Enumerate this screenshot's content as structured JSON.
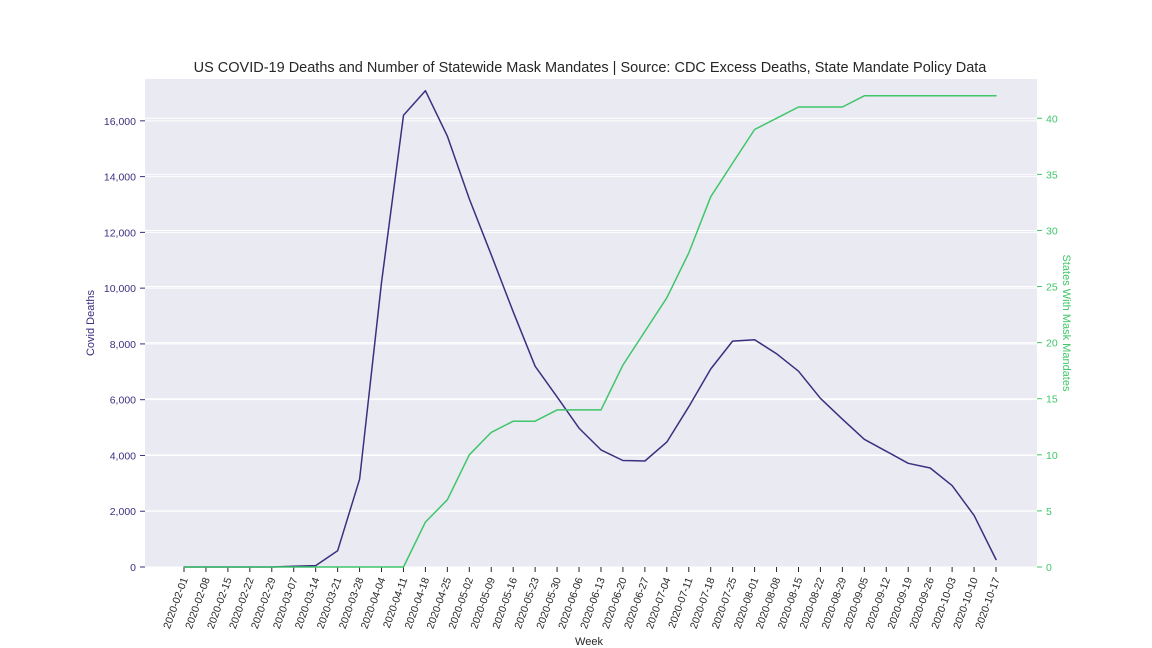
{
  "chart_data": {
    "type": "line",
    "title": "US COVID-19 Deaths and Number of Statewide Mask Mandates | Source: CDC Excess Deaths, State Mandate Policy Data",
    "xlabel": "Week",
    "ylabel_left": "Covid Deaths",
    "ylabel_right": "States With Mask Mandates",
    "x": [
      "2020-02-01",
      "2020-02-08",
      "2020-02-15",
      "2020-02-22",
      "2020-02-29",
      "2020-03-07",
      "2020-03-14",
      "2020-03-21",
      "2020-03-28",
      "2020-04-04",
      "2020-04-11",
      "2020-04-18",
      "2020-04-25",
      "2020-05-02",
      "2020-05-09",
      "2020-05-16",
      "2020-05-23",
      "2020-05-30",
      "2020-06-06",
      "2020-06-13",
      "2020-06-20",
      "2020-06-27",
      "2020-07-04",
      "2020-07-11",
      "2020-07-18",
      "2020-07-25",
      "2020-08-01",
      "2020-08-08",
      "2020-08-15",
      "2020-08-22",
      "2020-08-29",
      "2020-09-05",
      "2020-09-12",
      "2020-09-19",
      "2020-09-26",
      "2020-10-03",
      "2020-10-10",
      "2020-10-17"
    ],
    "ylim_left": [
      0,
      17500
    ],
    "yticks_left": [
      0,
      2000,
      4000,
      6000,
      8000,
      10000,
      12000,
      14000,
      16000
    ],
    "ytick_labels_left": [
      "0",
      "2,000",
      "4,000",
      "6,000",
      "8,000",
      "10,000",
      "12,000",
      "14,000",
      "16,000"
    ],
    "ylim_right": [
      0,
      43.5
    ],
    "yticks_right": [
      0,
      5,
      10,
      15,
      20,
      25,
      30,
      35,
      40
    ],
    "ytick_labels_right": [
      "0",
      "5",
      "10",
      "15",
      "20",
      "25",
      "30",
      "35",
      "40"
    ],
    "grid": true,
    "series": [
      {
        "name": "Covid Deaths",
        "axis": "left",
        "color": "#3a3080",
        "values": [
          0,
          0,
          0,
          0,
          0,
          30,
          50,
          580,
          3150,
          10200,
          16200,
          17080,
          15450,
          13200,
          11200,
          9150,
          7200,
          6100,
          4980,
          4200,
          3820,
          3800,
          4480,
          5750,
          7100,
          8100,
          8150,
          7650,
          7020,
          6050,
          5300,
          4580,
          4150,
          3720,
          3550,
          2920,
          1850,
          270
        ]
      },
      {
        "name": "States With Mask Mandates",
        "axis": "right",
        "color": "#3fc66a",
        "values": [
          0,
          0,
          0,
          0,
          0,
          0,
          0,
          0,
          0,
          0,
          0,
          4,
          6,
          10,
          12,
          13,
          13,
          14,
          14,
          14,
          18,
          21,
          24,
          28,
          33,
          36,
          39,
          40,
          41,
          41,
          41,
          42,
          42,
          42,
          42,
          42,
          42,
          42
        ]
      }
    ],
    "colors": {
      "plot_background": "#eaeaf2",
      "grid": "#ffffff",
      "left_axis": "#3a3080",
      "right_axis": "#3fc66a",
      "text": "#262626"
    }
  }
}
